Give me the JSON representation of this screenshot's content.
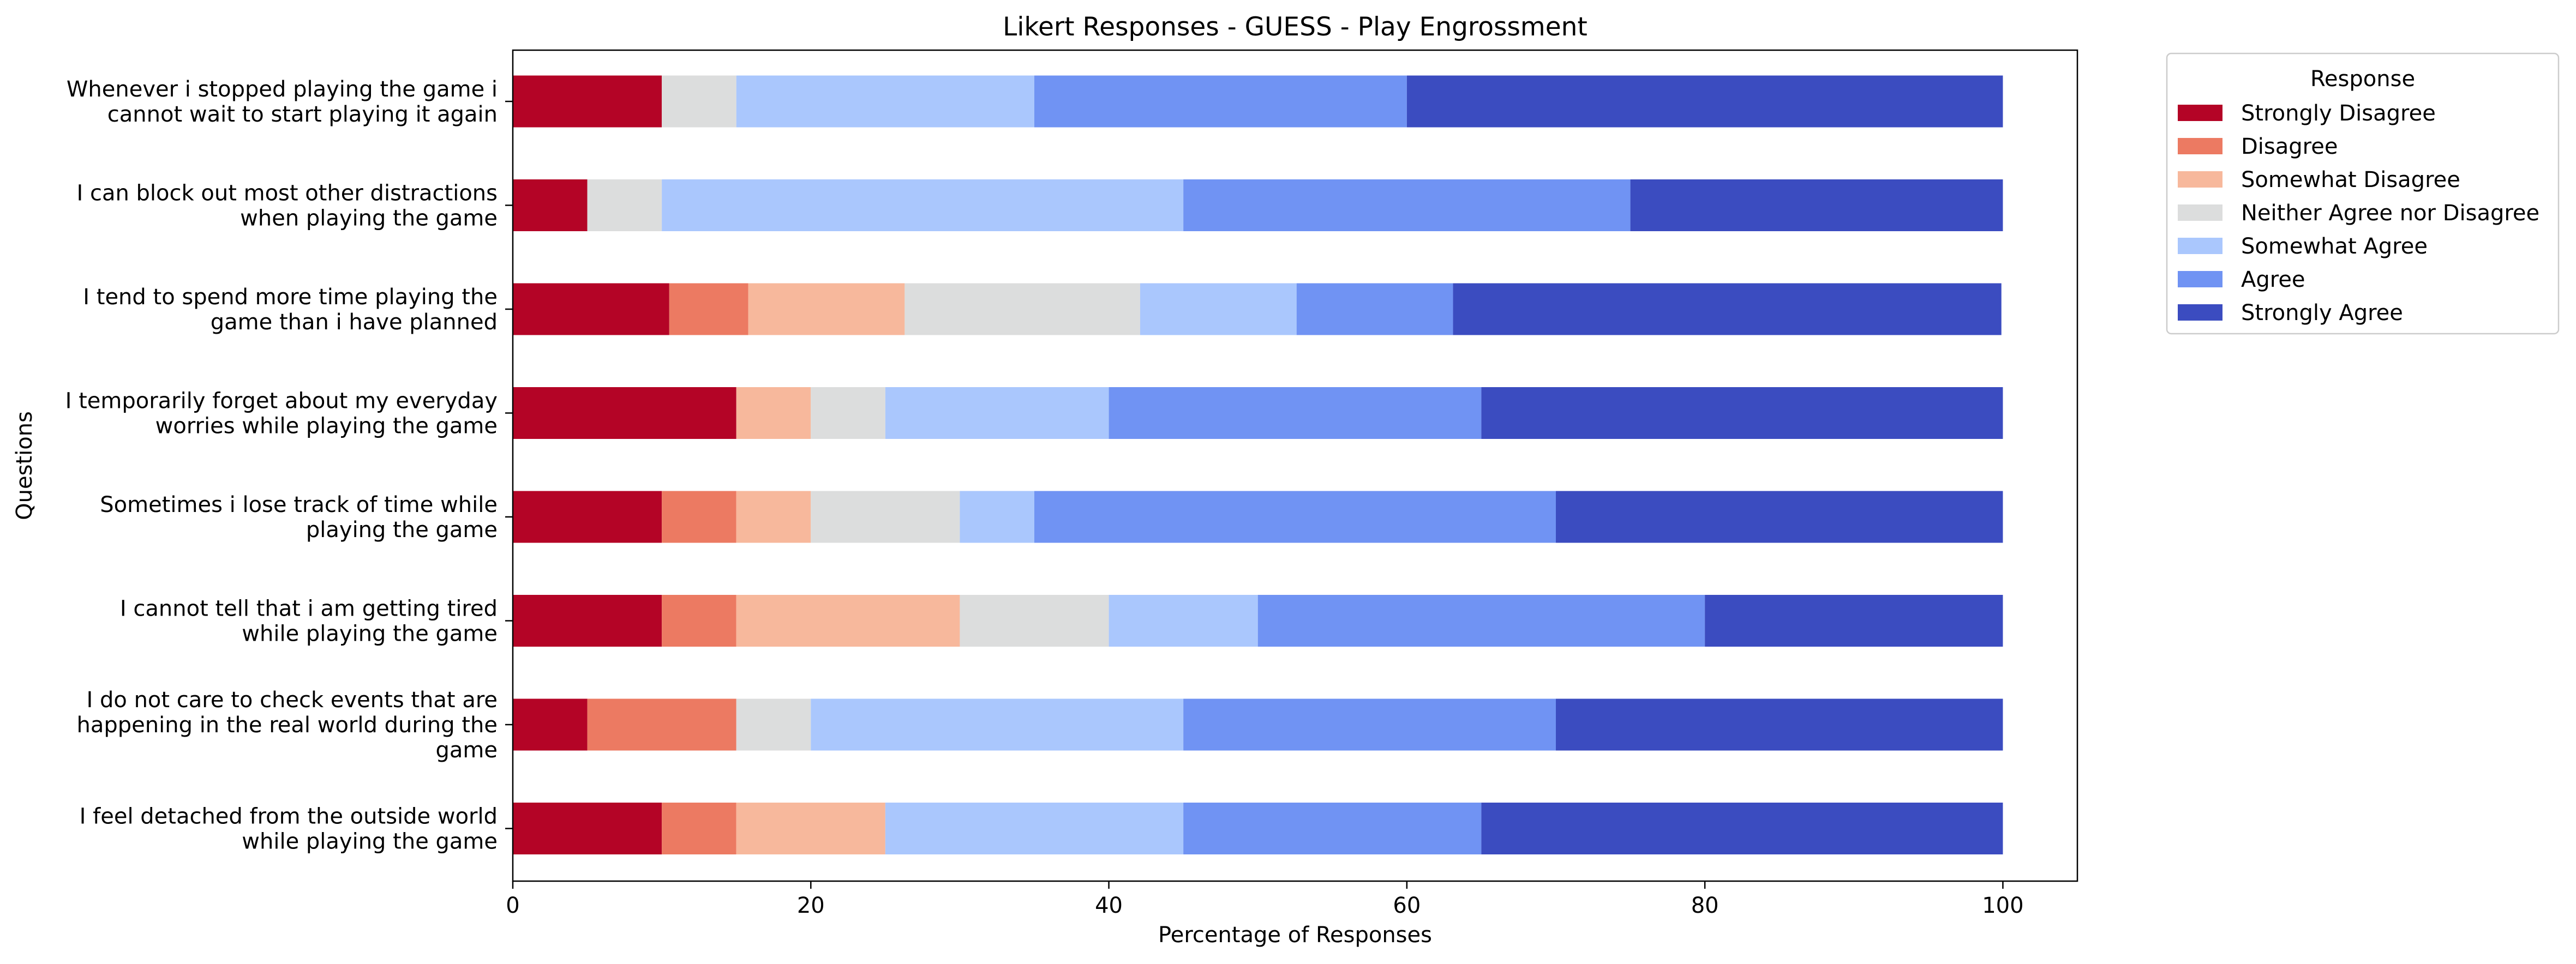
{
  "chart_data": {
    "type": "bar",
    "orientation": "horizontal",
    "stacked": true,
    "title": "Likert Responses - GUESS - Play Engrossment",
    "xlabel": "Percentage of Responses",
    "ylabel": "Questions",
    "xlim": [
      0,
      105
    ],
    "xticks": [
      0,
      20,
      40,
      60,
      80,
      100
    ],
    "grid": false,
    "legend": {
      "title": "Response",
      "placement": "outside-right-top"
    },
    "categories": [
      [
        "Whenever i stopped playing the game i",
        "cannot wait to start playing it again"
      ],
      [
        "I can block out most other distractions",
        "when playing the game"
      ],
      [
        "I tend to spend more time playing the",
        "game than i have planned"
      ],
      [
        "I temporarily forget about my everyday",
        "worries while playing the game"
      ],
      [
        "Sometimes i lose track of time while",
        "playing the game"
      ],
      [
        "I cannot tell that i am getting tired",
        "while playing the game"
      ],
      [
        "I do not care to check events that are",
        "happening in the real world during the",
        "game"
      ],
      [
        "I feel detached from the outside world",
        "while playing the game"
      ]
    ],
    "series": [
      {
        "name": "Strongly Disagree",
        "color": "#b40426",
        "values": [
          10,
          5,
          10.5,
          15,
          10,
          10,
          5,
          10
        ]
      },
      {
        "name": "Disagree",
        "color": "#ec7a62",
        "values": [
          0,
          0,
          5.3,
          0,
          5,
          5,
          10,
          5
        ]
      },
      {
        "name": "Somewhat Disagree",
        "color": "#f7b89c",
        "values": [
          0,
          0,
          10.5,
          5,
          5,
          15,
          0,
          10
        ]
      },
      {
        "name": "Neither Agree nor Disagree",
        "color": "#dcdddd",
        "values": [
          5,
          5,
          15.8,
          5,
          10,
          10,
          5,
          0
        ]
      },
      {
        "name": "Somewhat Agree",
        "color": "#aac7fd",
        "values": [
          20,
          35,
          10.5,
          15,
          5,
          10,
          25,
          20
        ]
      },
      {
        "name": "Agree",
        "color": "#7093f3",
        "values": [
          25,
          30,
          10.5,
          25,
          35,
          30,
          25,
          20
        ]
      },
      {
        "name": "Strongly Agree",
        "color": "#3b4cc0",
        "values": [
          40,
          25,
          36.8,
          35,
          30,
          20,
          30,
          35
        ]
      }
    ]
  }
}
